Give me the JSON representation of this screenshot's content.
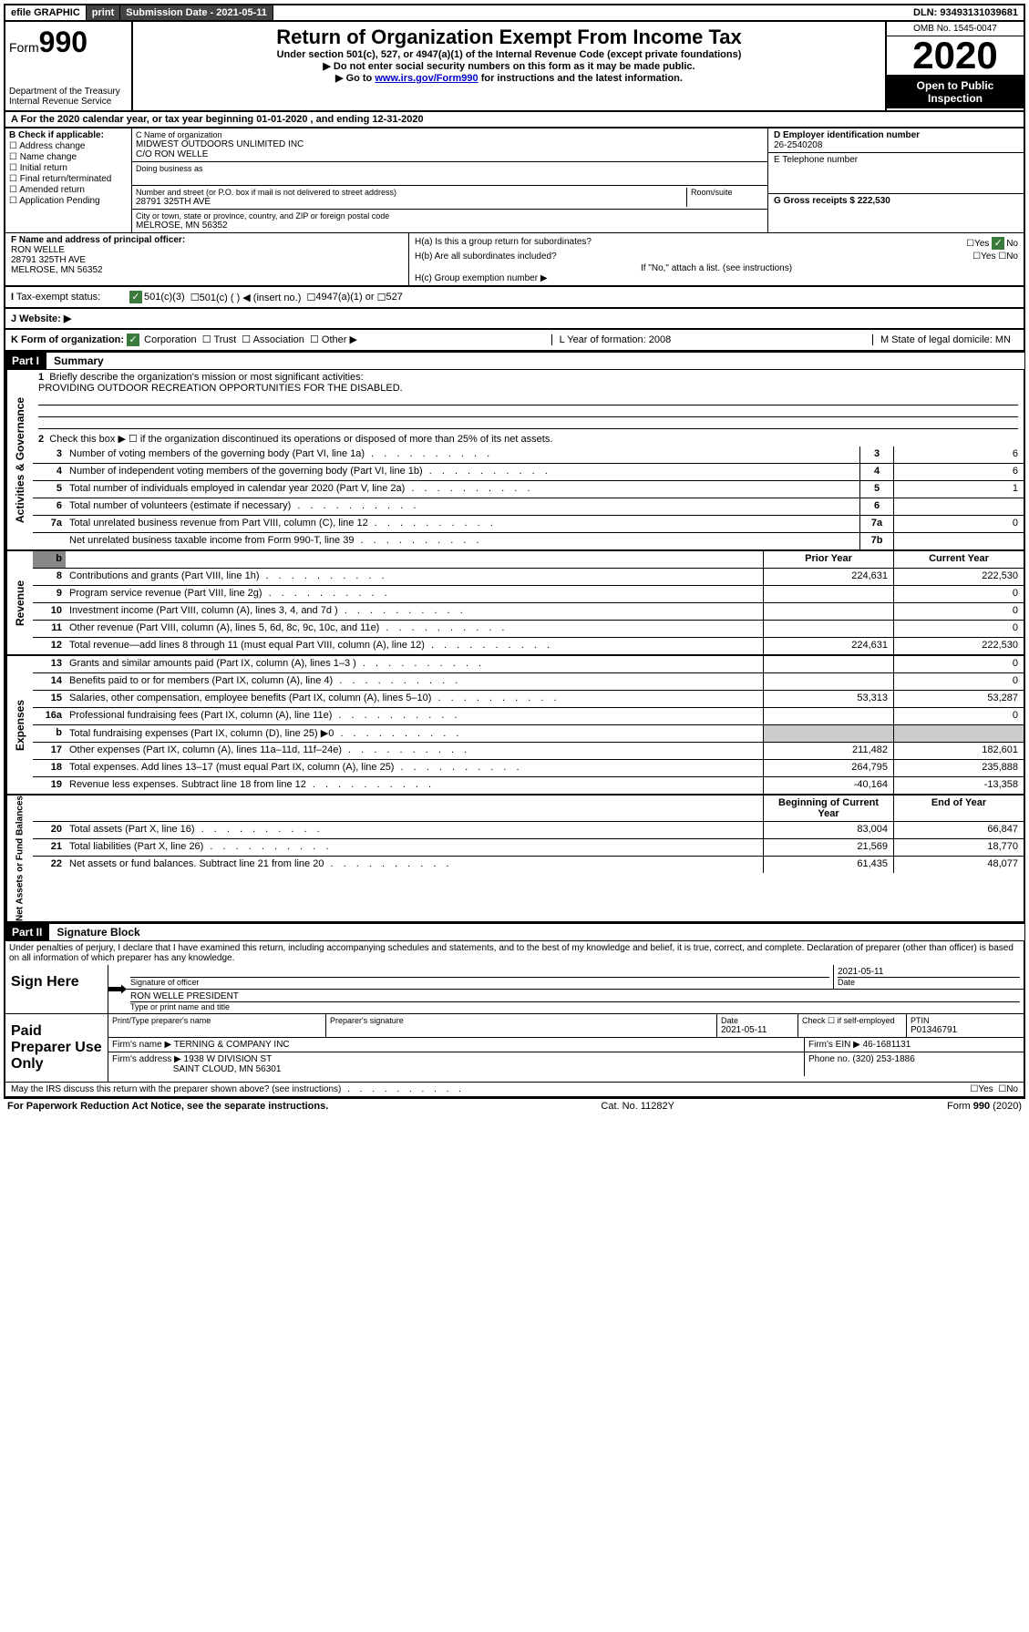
{
  "topbar": {
    "efile": "efile GRAPHIC",
    "print": "print",
    "subdate_label": "Submission Date - 2021-05-11",
    "dln": "DLN: 93493131039681"
  },
  "header": {
    "form_prefix": "Form",
    "form_number": "990",
    "dept1": "Department of the Treasury",
    "dept2": "Internal Revenue Service",
    "title": "Return of Organization Exempt From Income Tax",
    "sub1": "Under section 501(c), 527, or 4947(a)(1) of the Internal Revenue Code (except private foundations)",
    "sub2": "▶ Do not enter social security numbers on this form as it may be made public.",
    "sub3_pre": "▶ Go to ",
    "sub3_link": "www.irs.gov/Form990",
    "sub3_post": " for instructions and the latest information.",
    "omb": "OMB No. 1545-0047",
    "year": "2020",
    "open": "Open to Public Inspection"
  },
  "row_a": "A For the 2020 calendar year, or tax year beginning 01-01-2020    , and ending 12-31-2020",
  "col_b": {
    "label": "B Check if applicable:",
    "opts": [
      "Address change",
      "Name change",
      "Initial return",
      "Final return/terminated",
      "Amended return",
      "Application Pending"
    ]
  },
  "col_c": {
    "name_label": "C Name of organization",
    "name": "MIDWEST OUTDOORS UNLIMITED INC",
    "care_of": "C/O RON WELLE",
    "dba_label": "Doing business as",
    "addr_label": "Number and street (or P.O. box if mail is not delivered to street address)",
    "room_label": "Room/suite",
    "addr": "28791 325TH AVE",
    "city_label": "City or town, state or province, country, and ZIP or foreign postal code",
    "city": "MELROSE, MN  56352"
  },
  "col_de": {
    "d_label": "D Employer identification number",
    "d_val": "26-2540208",
    "e_label": "E Telephone number",
    "g_label": "G Gross receipts $ 222,530"
  },
  "col_f": {
    "label": "F  Name and address of principal officer:",
    "name": "RON WELLE",
    "addr": "28791 325TH AVE",
    "city": "MELROSE, MN  56352"
  },
  "col_h": {
    "ha": "H(a)  Is this a group return for subordinates?",
    "hb": "H(b)  Are all subordinates included?",
    "hb_note": "If \"No,\" attach a list. (see instructions)",
    "hc": "H(c)  Group exemption number ▶",
    "yes": "Yes",
    "no": "No"
  },
  "row_i": {
    "label": "Tax-exempt status:",
    "o1": "501(c)(3)",
    "o2": "501(c) (   ) ◀ (insert no.)",
    "o3": "4947(a)(1) or",
    "o4": "527"
  },
  "row_j": "J    Website: ▶",
  "row_k": {
    "label": "K Form of organization:",
    "o1": "Corporation",
    "o2": "Trust",
    "o3": "Association",
    "o4": "Other ▶",
    "l": "L Year of formation: 2008",
    "m": "M State of legal domicile: MN"
  },
  "part1": {
    "header": "Part I",
    "title": "Summary",
    "l1": "Briefly describe the organization's mission or most significant activities:",
    "mission": "PROVIDING OUTDOOR RECREATION OPPORTUNITIES FOR THE DISABLED.",
    "l2": "Check this box ▶ ☐  if the organization discontinued its operations or disposed of more than 25% of its net assets.",
    "sidelabels": {
      "gov": "Activities & Governance",
      "rev": "Revenue",
      "exp": "Expenses",
      "net": "Net Assets or Fund Balances"
    },
    "col_prior": "Prior Year",
    "col_current": "Current Year",
    "col_begin": "Beginning of Current Year",
    "col_end": "End of Year",
    "rows_gov": [
      {
        "n": "3",
        "d": "Number of voting members of the governing body (Part VI, line 1a)",
        "box": "3",
        "v": "6"
      },
      {
        "n": "4",
        "d": "Number of independent voting members of the governing body (Part VI, line 1b)",
        "box": "4",
        "v": "6"
      },
      {
        "n": "5",
        "d": "Total number of individuals employed in calendar year 2020 (Part V, line 2a)",
        "box": "5",
        "v": "1"
      },
      {
        "n": "6",
        "d": "Total number of volunteers (estimate if necessary)",
        "box": "6",
        "v": ""
      },
      {
        "n": "7a",
        "d": "Total unrelated business revenue from Part VIII, column (C), line 12",
        "box": "7a",
        "v": "0"
      },
      {
        "n": "",
        "d": "Net unrelated business taxable income from Form 990-T, line 39",
        "box": "7b",
        "v": ""
      }
    ],
    "rows_rev": [
      {
        "n": "8",
        "d": "Contributions and grants (Part VIII, line 1h)",
        "p": "224,631",
        "c": "222,530"
      },
      {
        "n": "9",
        "d": "Program service revenue (Part VIII, line 2g)",
        "p": "",
        "c": "0"
      },
      {
        "n": "10",
        "d": "Investment income (Part VIII, column (A), lines 3, 4, and 7d )",
        "p": "",
        "c": "0"
      },
      {
        "n": "11",
        "d": "Other revenue (Part VIII, column (A), lines 5, 6d, 8c, 9c, 10c, and 11e)",
        "p": "",
        "c": "0"
      },
      {
        "n": "12",
        "d": "Total revenue—add lines 8 through 11 (must equal Part VIII, column (A), line 12)",
        "p": "224,631",
        "c": "222,530"
      }
    ],
    "rows_exp": [
      {
        "n": "13",
        "d": "Grants and similar amounts paid (Part IX, column (A), lines 1–3 )",
        "p": "",
        "c": "0"
      },
      {
        "n": "14",
        "d": "Benefits paid to or for members (Part IX, column (A), line 4)",
        "p": "",
        "c": "0"
      },
      {
        "n": "15",
        "d": "Salaries, other compensation, employee benefits (Part IX, column (A), lines 5–10)",
        "p": "53,313",
        "c": "53,287"
      },
      {
        "n": "16a",
        "d": "Professional fundraising fees (Part IX, column (A), line 11e)",
        "p": "",
        "c": "0"
      },
      {
        "n": "b",
        "d": "Total fundraising expenses (Part IX, column (D), line 25) ▶0",
        "p": "grey",
        "c": "grey"
      },
      {
        "n": "17",
        "d": "Other expenses (Part IX, column (A), lines 11a–11d, 11f–24e)",
        "p": "211,482",
        "c": "182,601"
      },
      {
        "n": "18",
        "d": "Total expenses. Add lines 13–17 (must equal Part IX, column (A), line 25)",
        "p": "264,795",
        "c": "235,888"
      },
      {
        "n": "19",
        "d": "Revenue less expenses. Subtract line 18 from line 12",
        "p": "-40,164",
        "c": "-13,358"
      }
    ],
    "rows_net": [
      {
        "n": "20",
        "d": "Total assets (Part X, line 16)",
        "p": "83,004",
        "c": "66,847"
      },
      {
        "n": "21",
        "d": "Total liabilities (Part X, line 26)",
        "p": "21,569",
        "c": "18,770"
      },
      {
        "n": "22",
        "d": "Net assets or fund balances. Subtract line 21 from line 20",
        "p": "61,435",
        "c": "48,077"
      }
    ]
  },
  "part2": {
    "header": "Part II",
    "title": "Signature Block",
    "perjury": "Under penalties of perjury, I declare that I have examined this return, including accompanying schedules and statements, and to the best of my knowledge and belief, it is true, correct, and complete. Declaration of preparer (other than officer) is based on all information of which preparer has any knowledge.",
    "sign_here": "Sign Here",
    "sig_officer": "Signature of officer",
    "date": "Date",
    "date_val": "2021-05-11",
    "officer_name": "RON WELLE  PRESIDENT",
    "type_name": "Type or print name and title",
    "paid": "Paid Preparer Use Only",
    "prep_name_label": "Print/Type preparer's name",
    "prep_sig_label": "Preparer's signature",
    "prep_date_label": "Date",
    "prep_date": "2021-05-11",
    "check_label": "Check ☐ if self-employed",
    "ptin_label": "PTIN",
    "ptin": "P01346791",
    "firm_name_label": "Firm's name    ▶",
    "firm_name": "TERNING & COMPANY INC",
    "firm_ein_label": "Firm's EIN ▶",
    "firm_ein": "46-1681131",
    "firm_addr_label": "Firm's address ▶",
    "firm_addr1": "1938 W DIVISION ST",
    "firm_addr2": "SAINT CLOUD, MN  56301",
    "phone_label": "Phone no.",
    "phone": "(320) 253-1886",
    "discuss": "May the IRS discuss this return with the preparer shown above? (see instructions)",
    "yes": "Yes",
    "no": "No"
  },
  "footer": {
    "left": "For Paperwork Reduction Act Notice, see the separate instructions.",
    "mid": "Cat. No. 11282Y",
    "right": "Form 990 (2020)"
  }
}
